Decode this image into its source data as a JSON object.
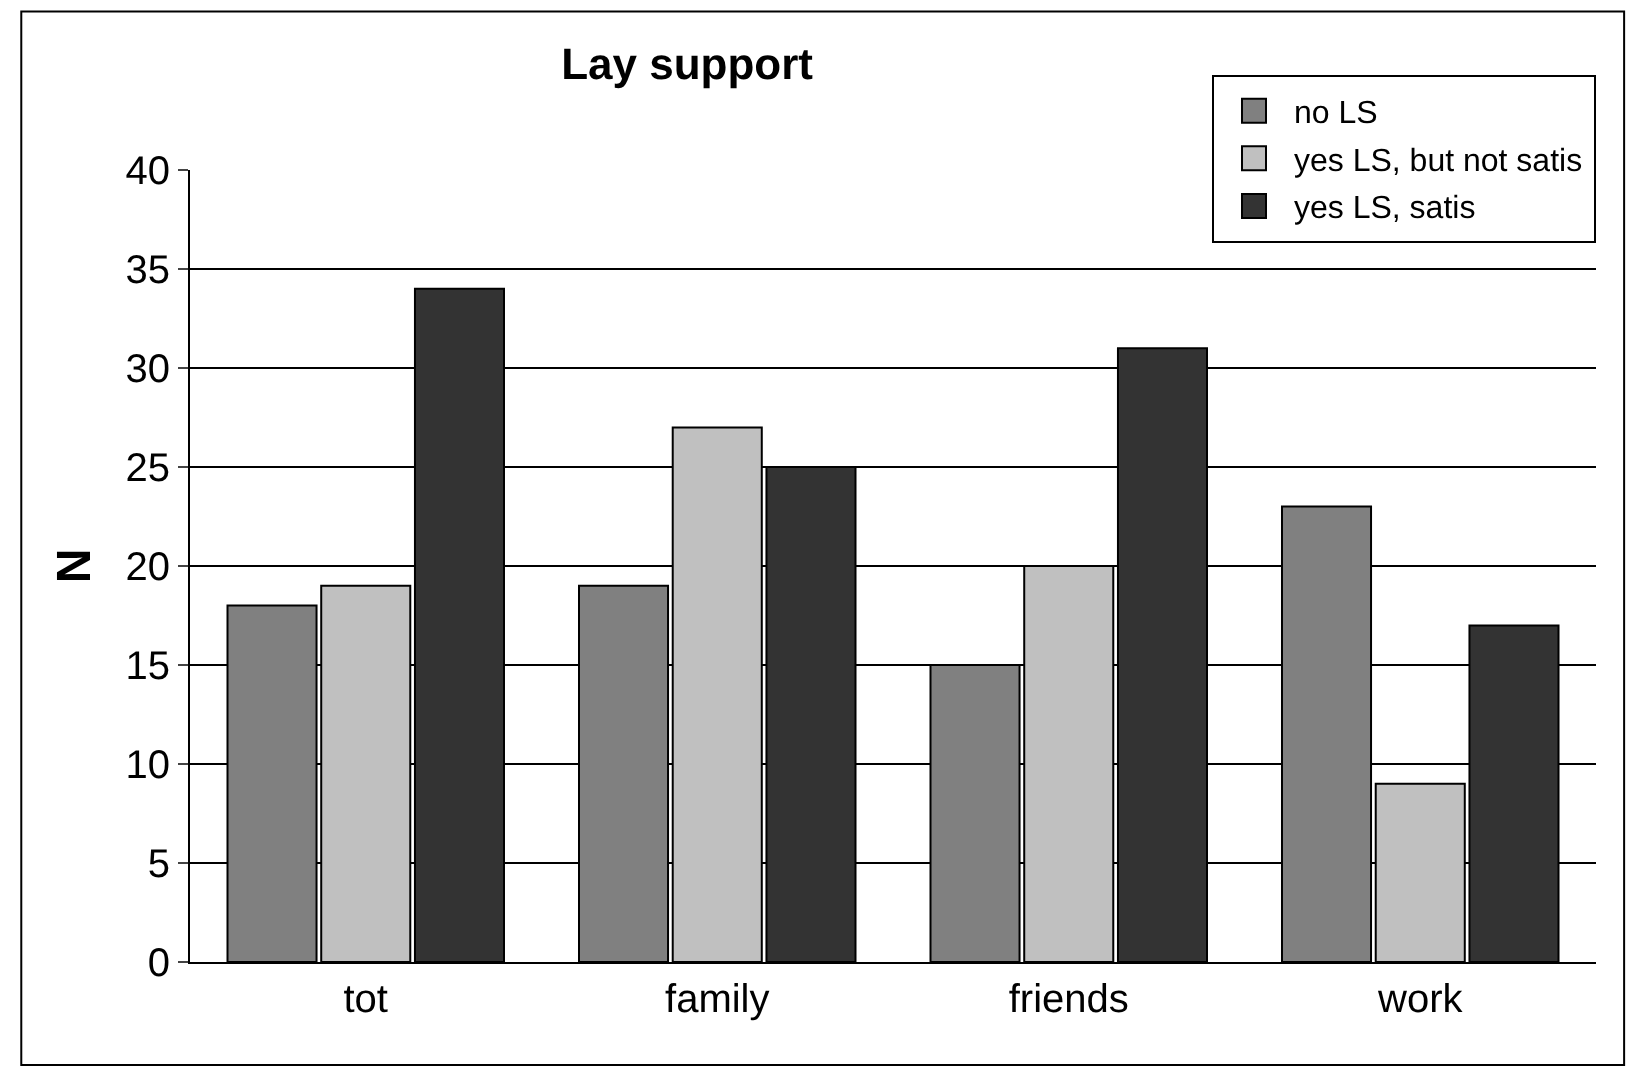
{
  "chart_data": {
    "type": "bar",
    "title": "Lay support",
    "ylabel": "N",
    "categories": [
      "tot",
      "family",
      "friends",
      "work"
    ],
    "series": [
      {
        "name": "no LS",
        "color": "#808080",
        "values": [
          18,
          19,
          15,
          23
        ]
      },
      {
        "name": "yes LS, but not satis",
        "color": "#c0c0c0",
        "values": [
          19,
          27,
          20,
          9
        ]
      },
      {
        "name": "yes LS, satis",
        "color": "#333333",
        "values": [
          34,
          25,
          31,
          17
        ]
      }
    ],
    "ylim": [
      0,
      40
    ],
    "yticks": [
      0,
      5,
      10,
      15,
      20,
      25,
      30,
      35,
      40
    ],
    "grid": "y",
    "legend": "top right"
  }
}
